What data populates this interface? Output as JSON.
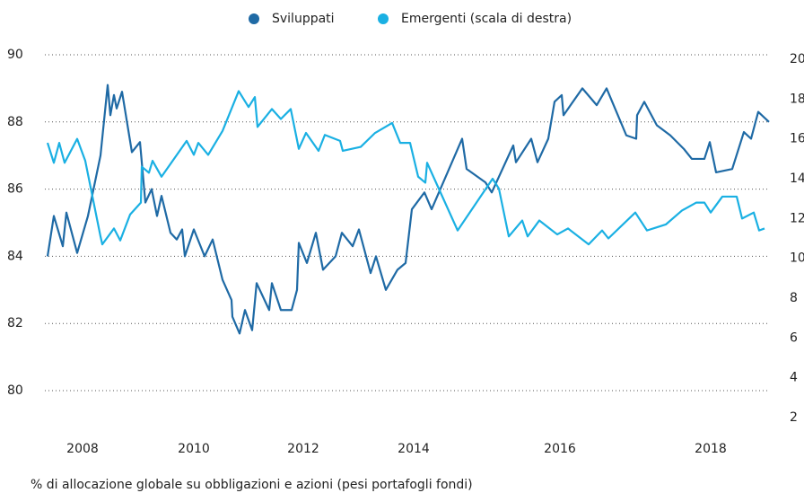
{
  "chart_data": {
    "type": "line",
    "caption": "% di allocazione globale su obbligazioni e azioni (pesi portafogli fondi)",
    "xlim": [
      0,
      804
    ],
    "xticks": [
      {
        "value": 39,
        "label": "2008"
      },
      {
        "value": 163,
        "label": "2010"
      },
      {
        "value": 285,
        "label": "2012"
      },
      {
        "value": 408,
        "label": "2014"
      },
      {
        "value": 571,
        "label": "2016"
      },
      {
        "value": 739,
        "label": "2018"
      }
    ],
    "ylim": [
      80,
      90
    ],
    "yticks": [
      80,
      82,
      84,
      86,
      88,
      90
    ],
    "y2lim": [
      2,
      20
    ],
    "y2ticks": [
      2,
      4,
      6,
      8,
      10,
      12,
      14,
      16,
      18,
      20
    ],
    "grid": true,
    "series": [
      {
        "name": "Sviluppati",
        "color": "#1f6aa5",
        "axis": "y",
        "x": [
          0,
          7,
          17,
          21,
          33,
          45,
          59,
          67,
          70,
          74,
          77,
          83,
          94,
          103,
          109,
          116,
          122,
          127,
          137,
          144,
          150,
          153,
          163,
          175,
          184,
          195,
          205,
          206,
          214,
          220,
          228,
          233,
          247,
          250,
          260,
          272,
          278,
          280,
          289,
          299,
          307,
          321,
          328,
          340,
          347,
          360,
          366,
          377,
          390,
          399,
          406,
          420,
          428,
          462,
          467,
          488,
          495,
          519,
          522,
          539,
          546,
          558,
          565,
          573,
          575,
          596,
          612,
          623,
          645,
          656,
          657,
          665,
          679,
          694,
          709,
          718,
          732,
          738,
          745,
          763,
          776,
          784,
          792,
          804
        ],
        "values": [
          84.0,
          85.2,
          84.3,
          85.3,
          84.1,
          85.2,
          87.0,
          89.1,
          88.2,
          88.8,
          88.4,
          88.9,
          87.1,
          87.4,
          85.6,
          86.0,
          85.2,
          85.8,
          84.7,
          84.5,
          84.8,
          84.0,
          84.8,
          84.0,
          84.5,
          83.3,
          82.7,
          82.2,
          81.7,
          82.4,
          81.8,
          83.2,
          82.4,
          83.2,
          82.4,
          82.4,
          83.0,
          84.4,
          83.8,
          84.7,
          83.6,
          84.0,
          84.7,
          84.3,
          84.8,
          83.5,
          84.0,
          83.0,
          83.6,
          83.8,
          85.4,
          85.9,
          85.4,
          87.5,
          86.6,
          86.2,
          85.9,
          87.3,
          86.8,
          87.5,
          86.8,
          87.5,
          88.6,
          88.8,
          88.2,
          89.0,
          88.5,
          89.0,
          87.6,
          87.5,
          88.2,
          88.6,
          87.9,
          87.6,
          87.2,
          86.9,
          86.9,
          87.4,
          86.5,
          86.6,
          87.7,
          87.5,
          88.3,
          88.0
        ]
      },
      {
        "name": "Emergenti (scala di destra)",
        "color": "#1ab0e3",
        "axis": "y2",
        "x": [
          0,
          7,
          13,
          19,
          33,
          42,
          59,
          61,
          74,
          81,
          92,
          104,
          105,
          113,
          117,
          127,
          155,
          163,
          168,
          179,
          195,
          213,
          224,
          231,
          234,
          250,
          260,
          271,
          280,
          288,
          302,
          309,
          326,
          329,
          349,
          365,
          384,
          393,
          404,
          413,
          421,
          423,
          435,
          457,
          496,
          503,
          514,
          529,
          535,
          548,
          568,
          580,
          603,
          618,
          625,
          655,
          668,
          689,
          707,
          723,
          732,
          739,
          752,
          768,
          774,
          787,
          793,
          799
        ],
        "values": [
          15.8,
          14.8,
          15.8,
          14.8,
          16.0,
          14.9,
          11.1,
          10.7,
          11.5,
          10.9,
          12.2,
          12.8,
          14.6,
          14.3,
          14.9,
          14.1,
          15.9,
          15.2,
          15.8,
          15.2,
          16.4,
          18.4,
          17.6,
          18.1,
          16.6,
          17.5,
          17.0,
          17.5,
          15.5,
          16.3,
          15.4,
          16.2,
          15.9,
          15.4,
          15.6,
          16.3,
          16.8,
          15.8,
          15.8,
          14.1,
          13.8,
          14.8,
          13.6,
          11.4,
          14.0,
          13.5,
          11.1,
          11.9,
          11.1,
          11.9,
          11.2,
          11.5,
          10.7,
          11.4,
          11.0,
          12.3,
          11.4,
          11.7,
          12.4,
          12.8,
          12.8,
          12.3,
          13.1,
          13.1,
          12.0,
          12.3,
          11.4,
          11.5
        ]
      }
    ]
  }
}
